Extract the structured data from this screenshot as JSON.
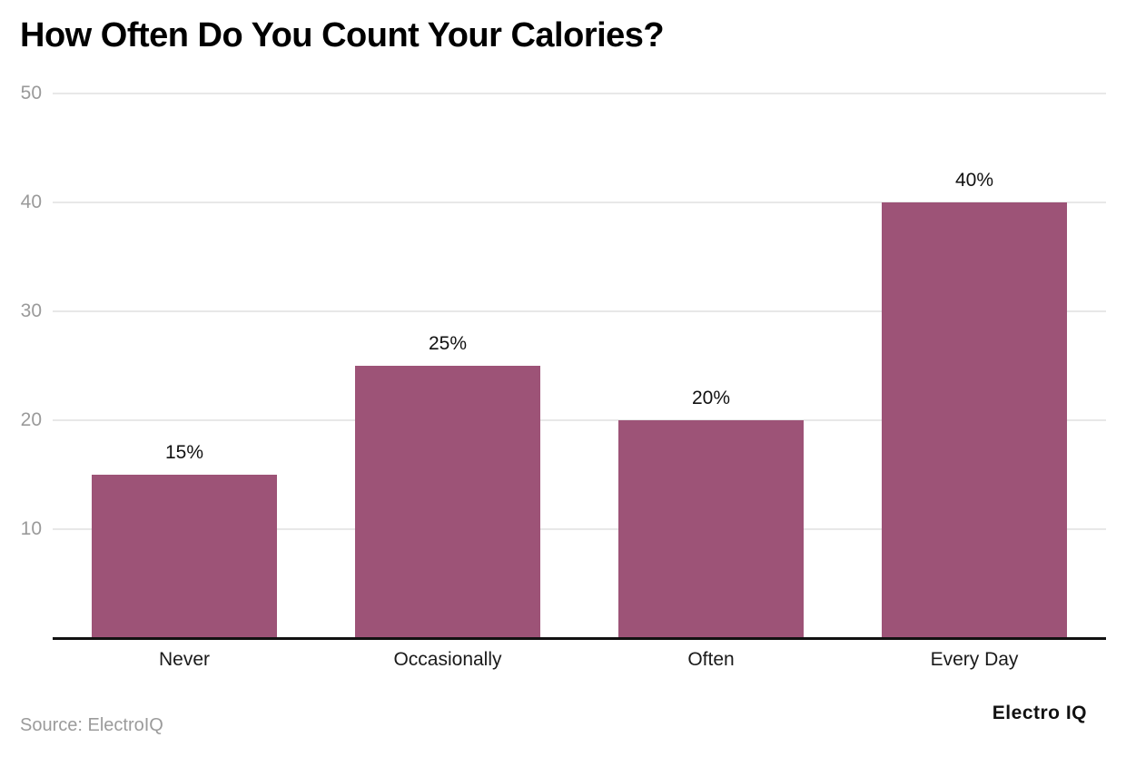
{
  "header": {
    "title": "How Often Do You Count Your Calories?"
  },
  "footer": {
    "source": "Source: ElectroIQ",
    "brand": "Electro IQ"
  },
  "chart_data": {
    "type": "bar",
    "title": "How Often Do You Count Your Calories?",
    "categories": [
      "Never",
      "Occasionally",
      "Often",
      "Every Day"
    ],
    "values": [
      15,
      25,
      20,
      40
    ],
    "value_labels": [
      "15%",
      "25%",
      "20%",
      "40%"
    ],
    "xlabel": "",
    "ylabel": "",
    "ylim": [
      0,
      50
    ],
    "yticks": [
      10,
      20,
      30,
      40,
      50
    ],
    "grid": true,
    "legend": "none",
    "colors": {
      "bar": "#9d5377",
      "gridline": "#e8e8e8",
      "tick_label": "#9a9a9a",
      "axis_line": "#111111",
      "value_label": "#111111",
      "category_label": "#1a1a1a"
    }
  }
}
